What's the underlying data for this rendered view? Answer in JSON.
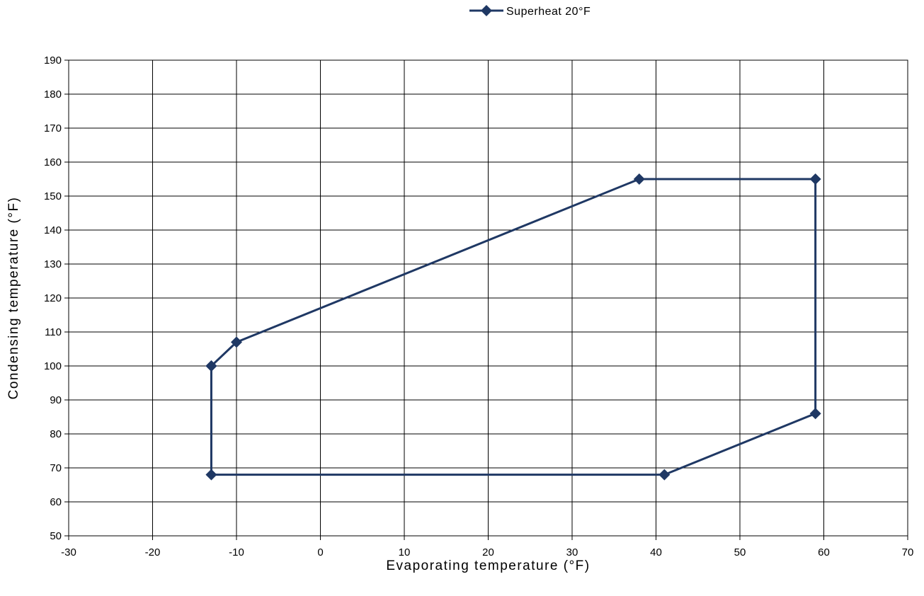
{
  "chart_data": {
    "type": "scatter",
    "title": "",
    "xlabel": "Evaporating temperature (°F)",
    "ylabel": "Condensing temperature (°F)",
    "xlim": [
      -30,
      70
    ],
    "ylim": [
      50,
      190
    ],
    "xticks": [
      -30,
      -20,
      -10,
      0,
      10,
      20,
      30,
      40,
      50,
      60,
      70
    ],
    "yticks": [
      50,
      60,
      70,
      80,
      90,
      100,
      110,
      120,
      130,
      140,
      150,
      160,
      170,
      180,
      190
    ],
    "grid": true,
    "legend_position": "top-center",
    "series": [
      {
        "name": "Superheat 20°F",
        "color": "#1f3864",
        "marker": "diamond",
        "x": [
          -13,
          -10,
          38,
          59,
          59,
          41,
          -13,
          -13
        ],
        "y": [
          100,
          107,
          155,
          155,
          86,
          68,
          68,
          100
        ]
      }
    ]
  }
}
